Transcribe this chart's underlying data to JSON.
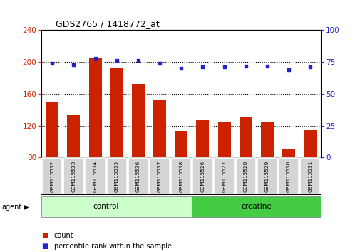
{
  "title": "GDS2765 / 1418772_at",
  "samples": [
    "GSM115532",
    "GSM115533",
    "GSM115534",
    "GSM115535",
    "GSM115536",
    "GSM115537",
    "GSM115538",
    "GSM115526",
    "GSM115527",
    "GSM115528",
    "GSM115529",
    "GSM115530",
    "GSM115531"
  ],
  "counts": [
    150,
    133,
    205,
    193,
    172,
    152,
    113,
    128,
    125,
    130,
    125,
    90,
    115
  ],
  "percentile": [
    74,
    73,
    78,
    76,
    76,
    74,
    70,
    71,
    71,
    72,
    72,
    69,
    71
  ],
  "ylim_left": [
    80,
    240
  ],
  "ylim_right": [
    0,
    100
  ],
  "yticks_left": [
    80,
    120,
    160,
    200,
    240
  ],
  "yticks_right": [
    0,
    25,
    50,
    75,
    100
  ],
  "bar_color": "#cc2200",
  "dot_color": "#2222cc",
  "control_color": "#ccffcc",
  "creatine_color": "#44cc44",
  "control_label": "control",
  "creatine_label": "creatine",
  "agent_label": "agent",
  "legend_count": "count",
  "legend_pct": "percentile rank within the sample",
  "n_control": 7,
  "n_creatine": 6,
  "bar_width": 0.6
}
